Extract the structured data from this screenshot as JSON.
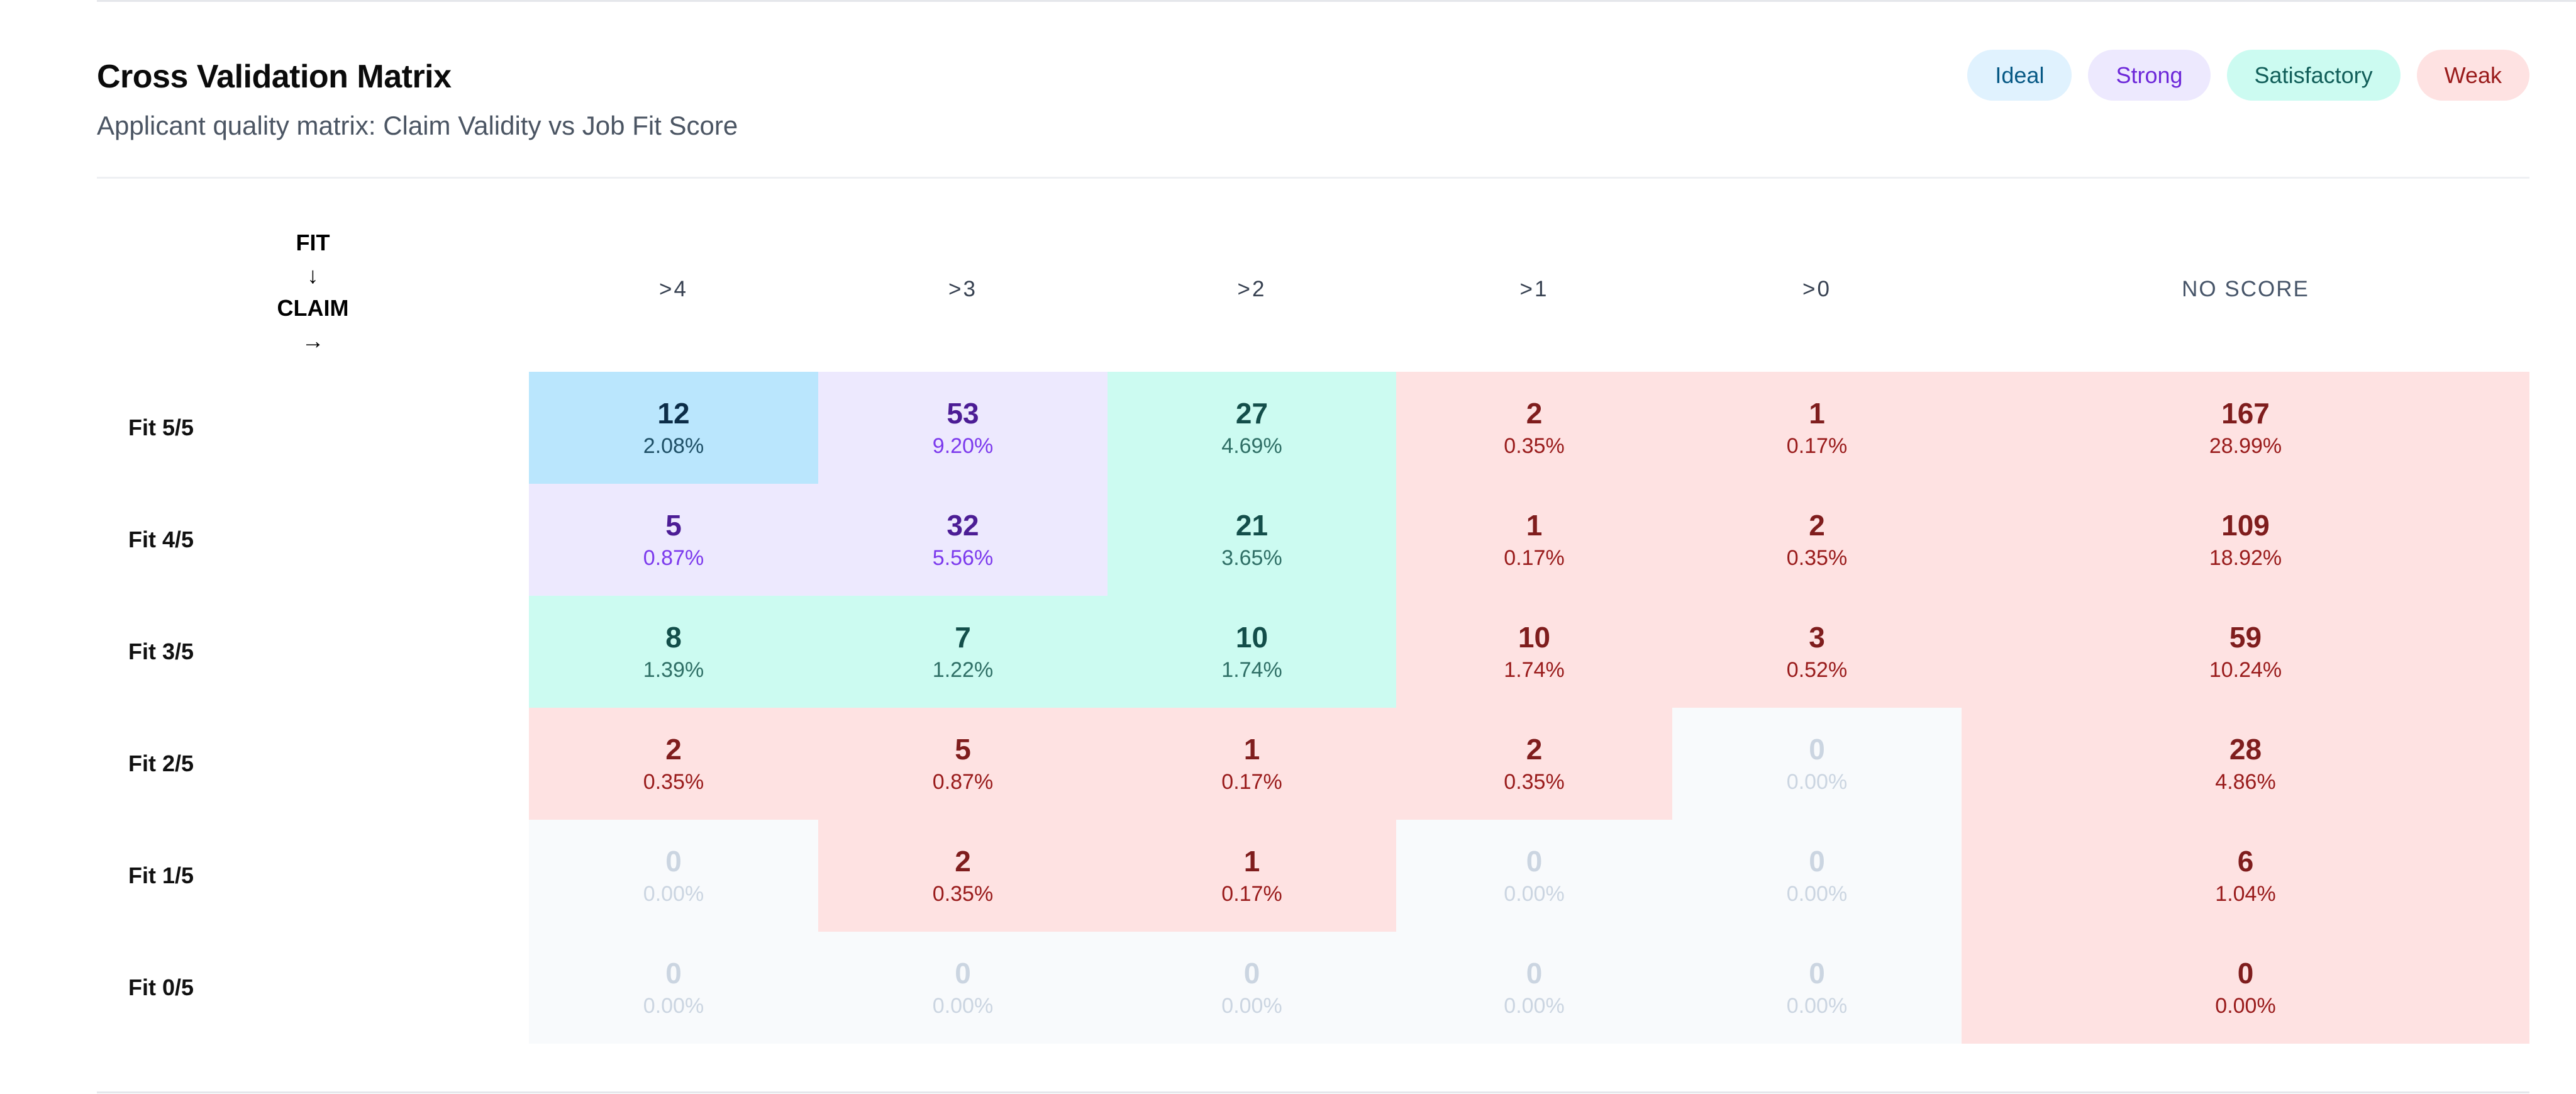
{
  "header": {
    "title": "Cross Validation Matrix",
    "subtitle": "Applicant quality matrix: Claim Validity vs Job Fit Score"
  },
  "legend": [
    {
      "label": "Ideal",
      "bg": "#e0f2fe",
      "color": "#075985"
    },
    {
      "label": "Strong",
      "bg": "#ede9fe",
      "color": "#6d28d9"
    },
    {
      "label": "Satisfactory",
      "bg": "#ccfbf1",
      "color": "#115e59"
    },
    {
      "label": "Weak",
      "bg": "#fee2e2",
      "color": "#991b1b"
    }
  ],
  "categories": {
    "ideal": {
      "bg": "#bae6fd",
      "count": "#0c2d48",
      "pct": "#1e4f66"
    },
    "strong": {
      "bg": "#ede9fe",
      "count": "#4c1d95",
      "pct": "#7c3aed"
    },
    "satisfactory": {
      "bg": "#ccfbf1",
      "count": "#134e4a",
      "pct": "#2f6f66"
    },
    "weak": {
      "bg": "#fee2e2",
      "count": "#7f1d1d",
      "pct": "#991b1b"
    },
    "empty": {
      "bg": "#f8fafc",
      "count": "#cbd5e1",
      "pct": "#cbd5e1"
    }
  },
  "corner": {
    "fit": "FIT",
    "down_arrow": "↓",
    "claim": "CLAIM",
    "right_arrow": "→"
  },
  "columns": [
    ">4",
    ">3",
    ">2",
    ">1",
    ">0",
    "NO SCORE"
  ],
  "rows": [
    {
      "label": "Fit 5/5",
      "cells": [
        [
          "12",
          "2.08%",
          "ideal"
        ],
        [
          "53",
          "9.20%",
          "strong"
        ],
        [
          "27",
          "4.69%",
          "satisfactory"
        ],
        [
          "2",
          "0.35%",
          "weak"
        ],
        [
          "1",
          "0.17%",
          "weak"
        ],
        [
          "167",
          "28.99%",
          "weak"
        ]
      ]
    },
    {
      "label": "Fit 4/5",
      "cells": [
        [
          "5",
          "0.87%",
          "strong"
        ],
        [
          "32",
          "5.56%",
          "strong"
        ],
        [
          "21",
          "3.65%",
          "satisfactory"
        ],
        [
          "1",
          "0.17%",
          "weak"
        ],
        [
          "2",
          "0.35%",
          "weak"
        ],
        [
          "109",
          "18.92%",
          "weak"
        ]
      ]
    },
    {
      "label": "Fit 3/5",
      "cells": [
        [
          "8",
          "1.39%",
          "satisfactory"
        ],
        [
          "7",
          "1.22%",
          "satisfactory"
        ],
        [
          "10",
          "1.74%",
          "satisfactory"
        ],
        [
          "10",
          "1.74%",
          "weak"
        ],
        [
          "3",
          "0.52%",
          "weak"
        ],
        [
          "59",
          "10.24%",
          "weak"
        ]
      ]
    },
    {
      "label": "Fit 2/5",
      "cells": [
        [
          "2",
          "0.35%",
          "weak"
        ],
        [
          "5",
          "0.87%",
          "weak"
        ],
        [
          "1",
          "0.17%",
          "weak"
        ],
        [
          "2",
          "0.35%",
          "weak"
        ],
        [
          "0",
          "0.00%",
          "empty"
        ],
        [
          "28",
          "4.86%",
          "weak"
        ]
      ]
    },
    {
      "label": "Fit 1/5",
      "cells": [
        [
          "0",
          "0.00%",
          "empty"
        ],
        [
          "2",
          "0.35%",
          "weak"
        ],
        [
          "1",
          "0.17%",
          "weak"
        ],
        [
          "0",
          "0.00%",
          "empty"
        ],
        [
          "0",
          "0.00%",
          "empty"
        ],
        [
          "6",
          "1.04%",
          "weak"
        ]
      ]
    },
    {
      "label": "Fit 0/5",
      "cells": [
        [
          "0",
          "0.00%",
          "empty"
        ],
        [
          "0",
          "0.00%",
          "empty"
        ],
        [
          "0",
          "0.00%",
          "empty"
        ],
        [
          "0",
          "0.00%",
          "empty"
        ],
        [
          "0",
          "0.00%",
          "empty"
        ],
        [
          "0",
          "0.00%",
          "weak"
        ]
      ]
    }
  ]
}
